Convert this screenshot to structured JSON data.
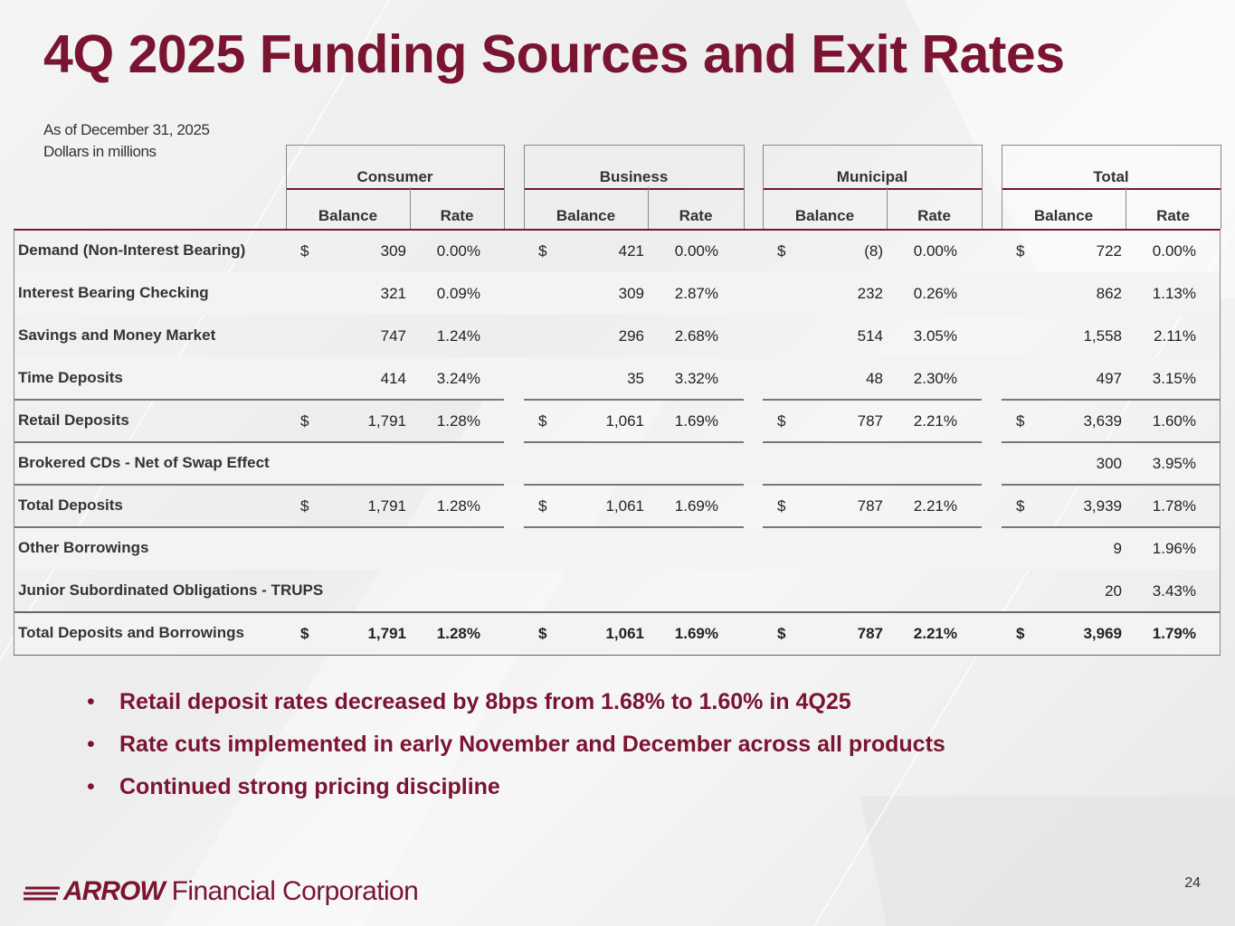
{
  "title": "4Q 2025 Funding Sources and Exit Rates",
  "subtitle": [
    "As of December 31, 2025",
    "Dollars in millions"
  ],
  "groups": [
    "Consumer",
    "Business",
    "Municipal",
    "Total"
  ],
  "subheaders": [
    "Balance",
    "Rate"
  ],
  "rows": [
    {
      "label": "Demand (Non-Interest Bearing)",
      "shade": false,
      "bold": false,
      "cells": [
        [
          "$",
          "309",
          "0.00%"
        ],
        [
          "$",
          "421",
          "0.00%"
        ],
        [
          "$",
          "(8)",
          "0.00%"
        ],
        [
          "$",
          "722",
          "0.00%"
        ]
      ]
    },
    {
      "label": "Interest Bearing Checking",
      "shade": true,
      "bold": false,
      "cells": [
        [
          "",
          "321",
          "0.09%"
        ],
        [
          "",
          "309",
          "2.87%"
        ],
        [
          "",
          "232",
          "0.26%"
        ],
        [
          "",
          "862",
          "1.13%"
        ]
      ]
    },
    {
      "label": "Savings and Money Market",
      "shade": false,
      "bold": false,
      "cells": [
        [
          "",
          "747",
          "1.24%"
        ],
        [
          "",
          "296",
          "2.68%"
        ],
        [
          "",
          "514",
          "3.05%"
        ],
        [
          "",
          "1,558",
          "2.11%"
        ]
      ]
    },
    {
      "label": "Time Deposits",
      "shade": true,
      "bold": false,
      "cells": [
        [
          "",
          "414",
          "3.24%"
        ],
        [
          "",
          "35",
          "3.32%"
        ],
        [
          "",
          "48",
          "2.30%"
        ],
        [
          "",
          "497",
          "3.15%"
        ]
      ]
    },
    {
      "label": "Retail Deposits",
      "shade": false,
      "bold": false,
      "cells": [
        [
          "$",
          "1,791",
          "1.28%"
        ],
        [
          "$",
          "1,061",
          "1.69%"
        ],
        [
          "$",
          "787",
          "2.21%"
        ],
        [
          "$",
          "3,639",
          "1.60%"
        ]
      ]
    },
    {
      "label": "Brokered CDs - Net of Swap Effect",
      "shade": true,
      "bold": false,
      "cells": [
        [
          "",
          "",
          ""
        ],
        [
          "",
          "",
          ""
        ],
        [
          "",
          "",
          ""
        ],
        [
          "",
          "300",
          "3.95%"
        ]
      ]
    },
    {
      "label": "Total Deposits",
      "shade": false,
      "bold": false,
      "cells": [
        [
          "$",
          "1,791",
          "1.28%"
        ],
        [
          "$",
          "1,061",
          "1.69%"
        ],
        [
          "$",
          "787",
          "2.21%"
        ],
        [
          "$",
          "3,939",
          "1.78%"
        ]
      ]
    },
    {
      "label": "Other Borrowings",
      "shade": true,
      "bold": false,
      "cells": [
        [
          "",
          "",
          ""
        ],
        [
          "",
          "",
          ""
        ],
        [
          "",
          "",
          ""
        ],
        [
          "",
          "9",
          "1.96%"
        ]
      ]
    },
    {
      "label": "Junior Subordinated Obligations - TRUPS",
      "shade": false,
      "bold": false,
      "cells": [
        [
          "",
          "",
          ""
        ],
        [
          "",
          "",
          ""
        ],
        [
          "",
          "",
          ""
        ],
        [
          "",
          "20",
          "3.43%"
        ]
      ]
    },
    {
      "label": "Total Deposits and Borrowings",
      "shade": true,
      "bold": true,
      "cells": [
        [
          "$",
          "1,791",
          "1.28%"
        ],
        [
          "$",
          "1,061",
          "1.69%"
        ],
        [
          "$",
          "787",
          "2.21%"
        ],
        [
          "$",
          "3,969",
          "1.79%"
        ]
      ]
    }
  ],
  "bullets": [
    "Retail deposit rates decreased by 8bps from 1.68% to 1.60% in 4Q25",
    "Rate cuts implemented in early November and December across all products",
    "Continued strong pricing discipline"
  ],
  "bullet_symbol": "•",
  "logo": {
    "mark": "ARROW",
    "text": "Financial Corporation"
  },
  "page_number": "24",
  "colors": {
    "brand": "#7a1431",
    "text": "#333333",
    "row_shade": "#f3f3f3"
  }
}
